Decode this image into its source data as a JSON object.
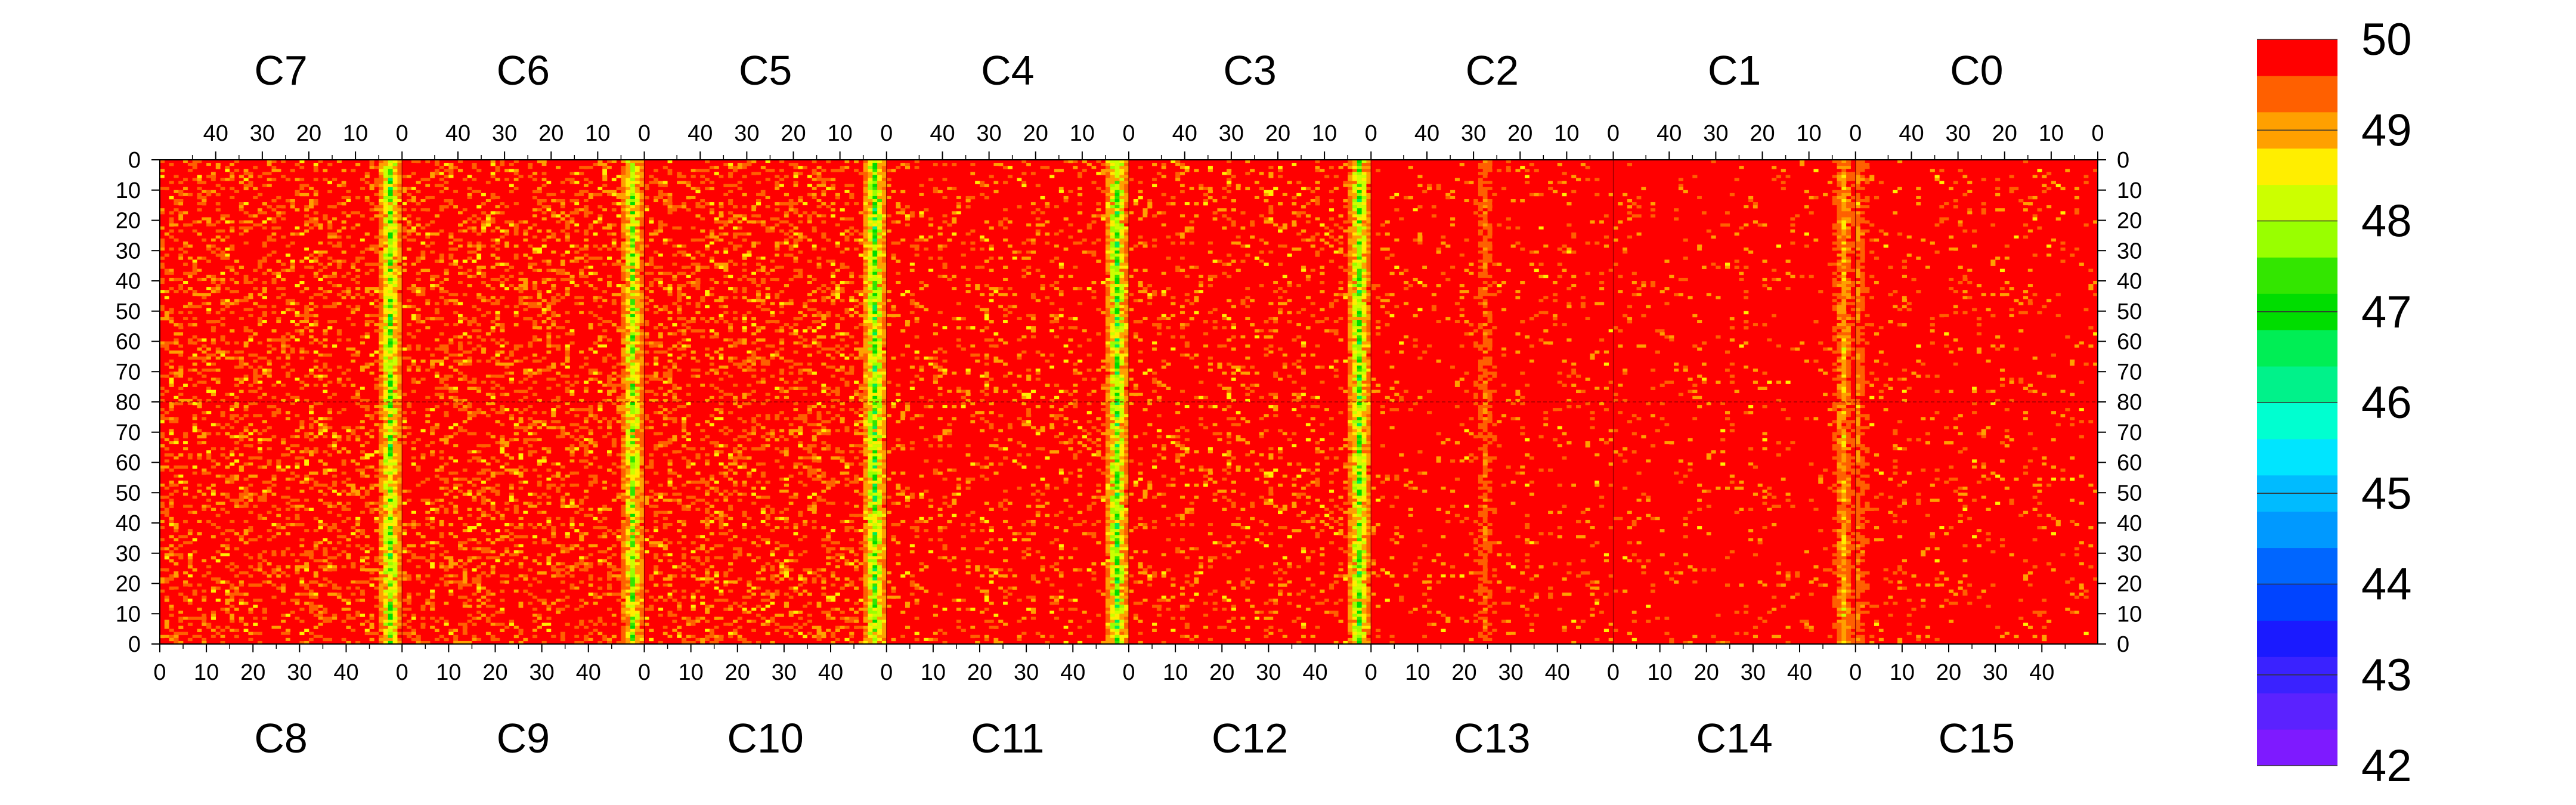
{
  "chart_data": {
    "type": "heatmap",
    "title": "",
    "colorbar": {
      "min": 42,
      "max": 50,
      "levels": 20,
      "tick_labels": [
        "50",
        "49",
        "48",
        "47",
        "46",
        "45",
        "44",
        "43",
        "42"
      ],
      "colors": [
        "#7e1aff",
        "#5b22ff",
        "#3a22ff",
        "#1a1aff",
        "#0044ff",
        "#0066ff",
        "#0099ff",
        "#00bbff",
        "#00e5ff",
        "#00ffd0",
        "#00f28a",
        "#00ee55",
        "#00dd00",
        "#33e600",
        "#99ff00",
        "#ccff00",
        "#ffee00",
        "#ffa000",
        "#ff6000",
        "#ff0000"
      ]
    },
    "top_labels": [
      "C7",
      "C6",
      "C5",
      "C4",
      "C3",
      "C2",
      "C1",
      "C0"
    ],
    "bottom_labels": [
      "C8",
      "C9",
      "C10",
      "C11",
      "C12",
      "C13",
      "C14",
      "C15"
    ],
    "top_ticks": [
      "40",
      "30",
      "20",
      "10",
      "0"
    ],
    "bottom_ticks": [
      "0",
      "10",
      "20",
      "30",
      "40"
    ],
    "y_ticks_top": [
      "0",
      "10",
      "20",
      "30",
      "40",
      "50",
      "60",
      "70",
      "80"
    ],
    "y_ticks_bottom": [
      "70",
      "60",
      "50",
      "40",
      "30",
      "20",
      "10",
      "0"
    ],
    "columns_per_chip": 52,
    "rows_per_half": 80,
    "chip_profiles": [
      {
        "chip_top": "C7",
        "chip_bottom": "C8",
        "typical": 49.8,
        "hot_column": 49,
        "hot_value": 47.8
      },
      {
        "chip_top": "C6",
        "chip_bottom": "C9",
        "typical": 49.8,
        "hot_column": 49,
        "hot_value": 48.0
      },
      {
        "chip_top": "C5",
        "chip_bottom": "C10",
        "typical": 49.8,
        "hot_column": 49,
        "hot_value": 47.6
      },
      {
        "chip_top": "C4",
        "chip_bottom": "C11",
        "typical": 49.85,
        "hot_column": 49,
        "hot_value": 47.7
      },
      {
        "chip_top": "C3",
        "chip_bottom": "C12",
        "typical": 49.85,
        "hot_column": 49,
        "hot_value": 47.8
      },
      {
        "chip_top": "C2",
        "chip_bottom": "C13",
        "typical": 49.95,
        "hot_column": 24,
        "hot_value": 49.4
      },
      {
        "chip_top": "C1",
        "chip_bottom": "C14",
        "typical": 49.98,
        "hot_column": 49,
        "hot_value": 49.0
      },
      {
        "chip_top": "C0",
        "chip_bottom": "C15",
        "typical": 49.95,
        "hot_column": 0,
        "hot_value": 49.3
      }
    ]
  }
}
